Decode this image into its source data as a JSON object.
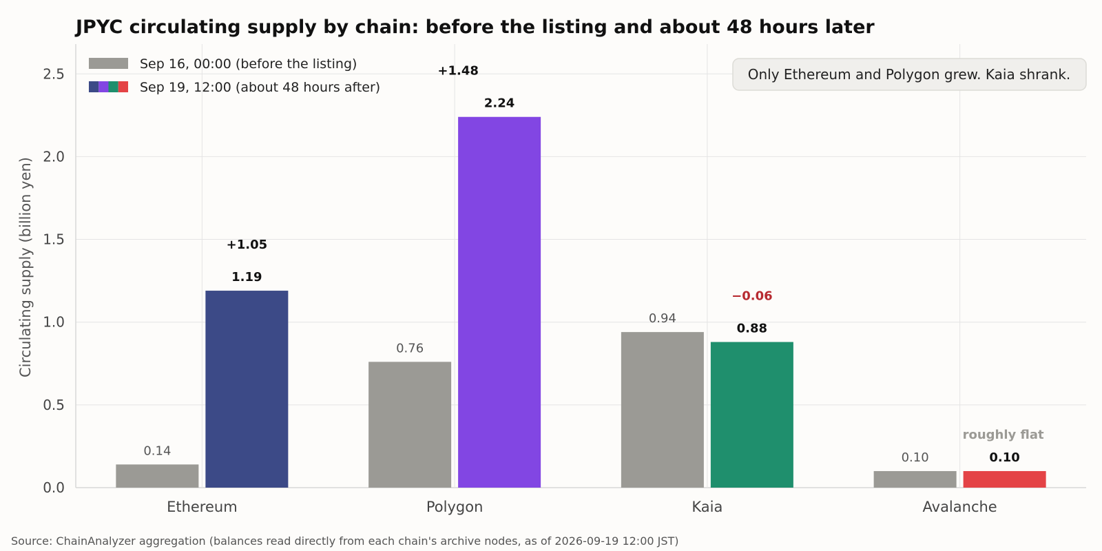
{
  "title": "JPYC circulating supply by chain: before the listing and about 48 hours later",
  "source": "Source: ChainAnalyzer aggregation (balances read directly from each chain's archive nodes, as of 2026-09-19 12:00 JST)",
  "note": "Only Ethereum and Polygon grew. Kaia shrank.",
  "colors": {
    "before": "#9b9a95",
    "grid": "#e4e4e4",
    "axis": "#d8d8d8",
    "negative": "#b72a30",
    "flat": "#9b9a95"
  },
  "chart_data": {
    "type": "bar",
    "categories": [
      "Ethereum",
      "Polygon",
      "Kaia",
      "Avalanche"
    ],
    "series": [
      {
        "name": "Sep 16, 00:00 (before the listing)",
        "values": [
          0.14,
          0.76,
          0.94,
          0.1
        ],
        "labels": [
          "0.14",
          "0.76",
          "0.94",
          "0.10"
        ]
      },
      {
        "name": "Sep 19, 12:00 (about 48 hours after)",
        "values": [
          1.19,
          2.24,
          0.88,
          0.1
        ],
        "labels": [
          "1.19",
          "2.24",
          "0.88",
          "0.10"
        ],
        "colors": [
          "#3c4a87",
          "#8246e3",
          "#1f8f6d",
          "#e44346"
        ]
      }
    ],
    "change_labels": [
      "+1.05",
      "+1.48",
      "−0.06",
      "roughly flat"
    ],
    "change_kinds": [
      "up",
      "up",
      "down",
      "flat"
    ],
    "xlabel": "",
    "ylabel": "Circulating supply (billion yen)",
    "ylim": [
      0,
      2.68
    ],
    "yticks": [
      "0.0",
      "0.5",
      "1.0",
      "1.5",
      "2.0",
      "2.5"
    ],
    "grid": true,
    "legend_position": "top-left"
  }
}
